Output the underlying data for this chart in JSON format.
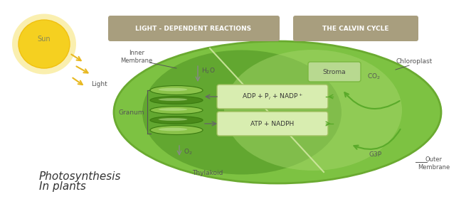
{
  "title1": "Photosynthesis",
  "title2": "In plants",
  "bg_color": "#ffffff",
  "header1_text": "LIGHT - DEPENDENT REACTIONS",
  "header2_text": "THE CALVIN CYCLE",
  "header_bg": "#a89e7e",
  "header_text_color": "#ffffff",
  "cell_outer_color": "#7dc242",
  "cell_inner_dark": "#5a9e2a",
  "cell_inner_light": "#a8d86e",
  "sun_color": "#f5d020",
  "sun_glow": "#f7e060",
  "arrow_color": "#6aaa30",
  "stroma_box_color": "#b8d990",
  "stroma_box_border": "#7ab840",
  "thylakoid_color": "#8bc34a",
  "thylakoid_dark": "#5a9e2a",
  "formula_box_color": "#d8edb0",
  "formula_box_border": "#a0c060",
  "label_color": "#555555",
  "granum_dark": "#4a8a1a",
  "light_arrow_color": "#e8b820",
  "calvin_arrow_color": "#5aaa2a"
}
